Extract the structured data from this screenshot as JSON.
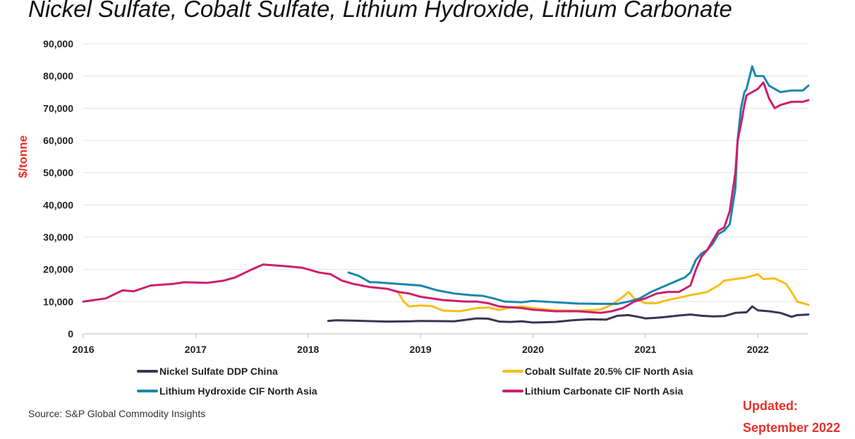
{
  "page_title": "Nickel Sulfate, Cobalt Sulfate, Lithium Hydroxide, Lithium Carbonate",
  "source": "Source: S&P Global Commodity Insights",
  "updated": {
    "line1": "Updated:",
    "line2": "September 2022"
  },
  "chart_data": {
    "type": "line",
    "title": "Nickel Sulfate, Cobalt Sulfate, Lithium Hydroxide, Lithium Carbonate",
    "xlabel": "",
    "ylabel": "$/tonne",
    "xlim": [
      2016,
      2022.45
    ],
    "ylim": [
      0,
      90000
    ],
    "grid": true,
    "x_ticks": [
      2016,
      2017,
      2018,
      2019,
      2020,
      2021,
      2022
    ],
    "x_tick_labels": [
      "2016",
      "2017",
      "2018",
      "2019",
      "2020",
      "2021",
      "2022"
    ],
    "y_ticks": [
      0,
      10000,
      20000,
      30000,
      40000,
      50000,
      60000,
      70000,
      80000,
      90000
    ],
    "y_tick_labels": [
      "0",
      "10,000",
      "20,000",
      "30,000",
      "40,000",
      "50,000",
      "60,000",
      "70,000",
      "80,000",
      "90,000"
    ],
    "legend_position": "bottom",
    "series": [
      {
        "name": "Nickel Sulfate DDP China",
        "color": "#3b3457",
        "x": [
          2018.18,
          2018.25,
          2018.5,
          2018.7,
          2018.9,
          2019.0,
          2019.3,
          2019.5,
          2019.6,
          2019.7,
          2019.8,
          2019.9,
          2020.0,
          2020.2,
          2020.35,
          2020.5,
          2020.65,
          2020.75,
          2020.85,
          2020.95,
          2021.0,
          2021.1,
          2021.2,
          2021.3,
          2021.4,
          2021.5,
          2021.6,
          2021.7,
          2021.8,
          2021.9,
          2021.95,
          2022.0,
          2022.1,
          2022.2,
          2022.3,
          2022.35,
          2022.45
        ],
        "y": [
          4000,
          4200,
          4000,
          3800,
          3900,
          4000,
          3900,
          4800,
          4700,
          3800,
          3700,
          3900,
          3500,
          3700,
          4200,
          4500,
          4400,
          5600,
          5800,
          5200,
          4800,
          5000,
          5300,
          5700,
          6000,
          5600,
          5400,
          5500,
          6500,
          6700,
          8500,
          7300,
          7000,
          6500,
          5300,
          5800,
          6000
        ]
      },
      {
        "name": "Cobalt Sulfate 20.5% CIF North Asia",
        "color": "#f9be1a",
        "x": [
          2018.8,
          2018.85,
          2018.9,
          2019.0,
          2019.1,
          2019.2,
          2019.35,
          2019.5,
          2019.6,
          2019.7,
          2019.8,
          2019.9,
          2020.0,
          2020.2,
          2020.4,
          2020.6,
          2020.7,
          2020.8,
          2020.85,
          2020.9,
          2021.0,
          2021.1,
          2021.2,
          2021.4,
          2021.55,
          2021.65,
          2021.7,
          2021.8,
          2021.9,
          2022.0,
          2022.05,
          2022.15,
          2022.25,
          2022.3,
          2022.35,
          2022.45
        ],
        "y": [
          12800,
          10000,
          8500,
          8800,
          8600,
          7200,
          7000,
          8000,
          8200,
          7400,
          8200,
          8500,
          8000,
          7300,
          7200,
          7500,
          9000,
          11500,
          13000,
          11000,
          9500,
          9500,
          10500,
          12000,
          13000,
          15000,
          16500,
          17000,
          17500,
          18500,
          17000,
          17200,
          15500,
          13000,
          10000,
          9000
        ]
      },
      {
        "name": "Lithium Hydroxide CIF North Asia",
        "color": "#1a87b0",
        "x": [
          2018.36,
          2018.45,
          2018.55,
          2018.6,
          2018.8,
          2019.0,
          2019.15,
          2019.3,
          2019.45,
          2019.55,
          2019.65,
          2019.75,
          2019.9,
          2020.0,
          2020.2,
          2020.4,
          2020.6,
          2020.75,
          2020.85,
          2020.95,
          2021.05,
          2021.15,
          2021.25,
          2021.35,
          2021.4,
          2021.45,
          2021.5,
          2021.55,
          2021.6,
          2021.65,
          2021.7,
          2021.75,
          2021.8,
          2021.82,
          2021.85,
          2021.88,
          2021.9,
          2021.95,
          2021.98,
          2022.0,
          2022.05,
          2022.1,
          2022.15,
          2022.2,
          2022.3,
          2022.4,
          2022.45
        ],
        "y": [
          19000,
          18000,
          16000,
          16000,
          15500,
          15000,
          13500,
          12500,
          12000,
          11800,
          11000,
          10000,
          9800,
          10200,
          9800,
          9400,
          9300,
          9300,
          10000,
          11000,
          13000,
          14500,
          16000,
          17500,
          19000,
          23000,
          25000,
          26000,
          28000,
          31000,
          32000,
          34000,
          45000,
          60000,
          70000,
          75000,
          76000,
          83000,
          80000,
          80000,
          80000,
          77000,
          76000,
          75000,
          75500,
          75500,
          77000
        ]
      },
      {
        "name": "Lithium Carbonate CIF North Asia",
        "color": "#cc1f6e",
        "x": [
          2016.0,
          2016.2,
          2016.35,
          2016.45,
          2016.6,
          2016.8,
          2016.9,
          2017.1,
          2017.25,
          2017.35,
          2017.5,
          2017.6,
          2017.8,
          2017.95,
          2018.1,
          2018.2,
          2018.3,
          2018.4,
          2018.55,
          2018.7,
          2018.8,
          2018.9,
          2019.0,
          2019.2,
          2019.4,
          2019.5,
          2019.6,
          2019.7,
          2019.9,
          2020.0,
          2020.2,
          2020.4,
          2020.6,
          2020.7,
          2020.8,
          2020.9,
          2021.0,
          2021.1,
          2021.2,
          2021.3,
          2021.4,
          2021.45,
          2021.5,
          2021.55,
          2021.6,
          2021.65,
          2021.7,
          2021.75,
          2021.8,
          2021.82,
          2021.85,
          2021.88,
          2021.9,
          2021.95,
          2022.0,
          2022.05,
          2022.1,
          2022.15,
          2022.2,
          2022.3,
          2022.4,
          2022.45
        ],
        "y": [
          10000,
          11000,
          13500,
          13200,
          15000,
          15500,
          16000,
          15800,
          16500,
          17500,
          20000,
          21500,
          21000,
          20500,
          19000,
          18500,
          16500,
          15500,
          14500,
          14000,
          13000,
          12500,
          11500,
          10500,
          10000,
          10000,
          9500,
          8500,
          8000,
          7500,
          7000,
          7000,
          6500,
          7000,
          8000,
          10000,
          11000,
          12500,
          13000,
          13000,
          15000,
          20000,
          24000,
          26000,
          29000,
          32000,
          33000,
          38000,
          50000,
          60000,
          65000,
          71000,
          74000,
          75000,
          76000,
          78000,
          73000,
          70000,
          71000,
          72000,
          72000,
          72500
        ]
      }
    ]
  }
}
